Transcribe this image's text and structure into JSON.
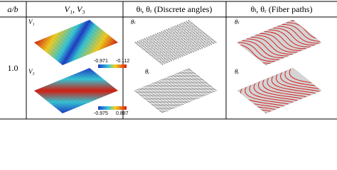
{
  "header": {
    "columns": [
      "a/b",
      "V₁, V₃",
      "θₗ, θᵣ (Discrete angles)",
      "θₗ, θᵣ (Fiber paths)"
    ]
  },
  "row": {
    "label": "1.0",
    "panels": {
      "v": [
        "V₁",
        "V₃"
      ],
      "discrete": [
        "θₗ",
        "θᵣ"
      ],
      "fiber": [
        "θₗ",
        "θᵣ"
      ]
    },
    "colorbars": [
      [
        "-0.971",
        "-0.112"
      ],
      [
        "-0.975",
        "0.887"
      ]
    ]
  }
}
